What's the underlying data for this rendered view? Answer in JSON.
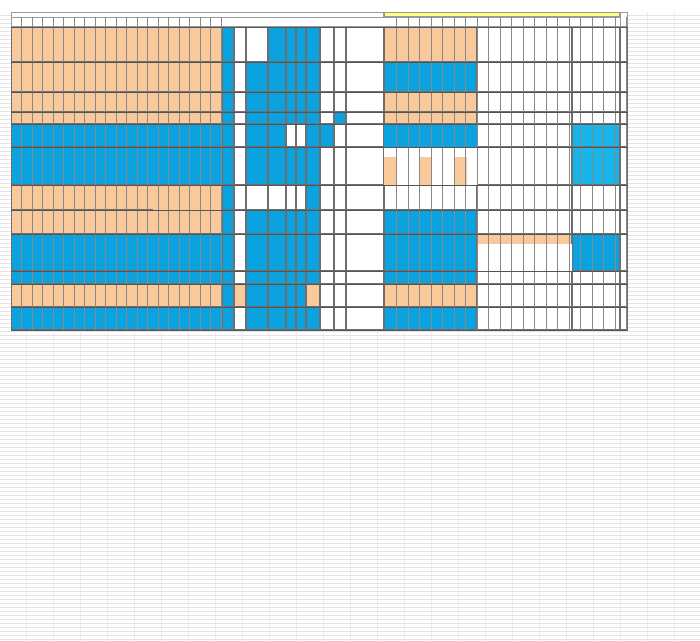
{
  "sheet": {
    "colors": {
      "peach": "#f9c89b",
      "blue": "#0aa3df",
      "header_yellow": "#ffff80",
      "grid": "#e4e4e4"
    },
    "row_count": 12,
    "column_groups": [
      "peach-block",
      "blue-column-1",
      "white-column",
      "mixed-columns",
      "blue-column-2",
      "notes-column",
      "right-peach-block",
      "right-white-block"
    ]
  }
}
